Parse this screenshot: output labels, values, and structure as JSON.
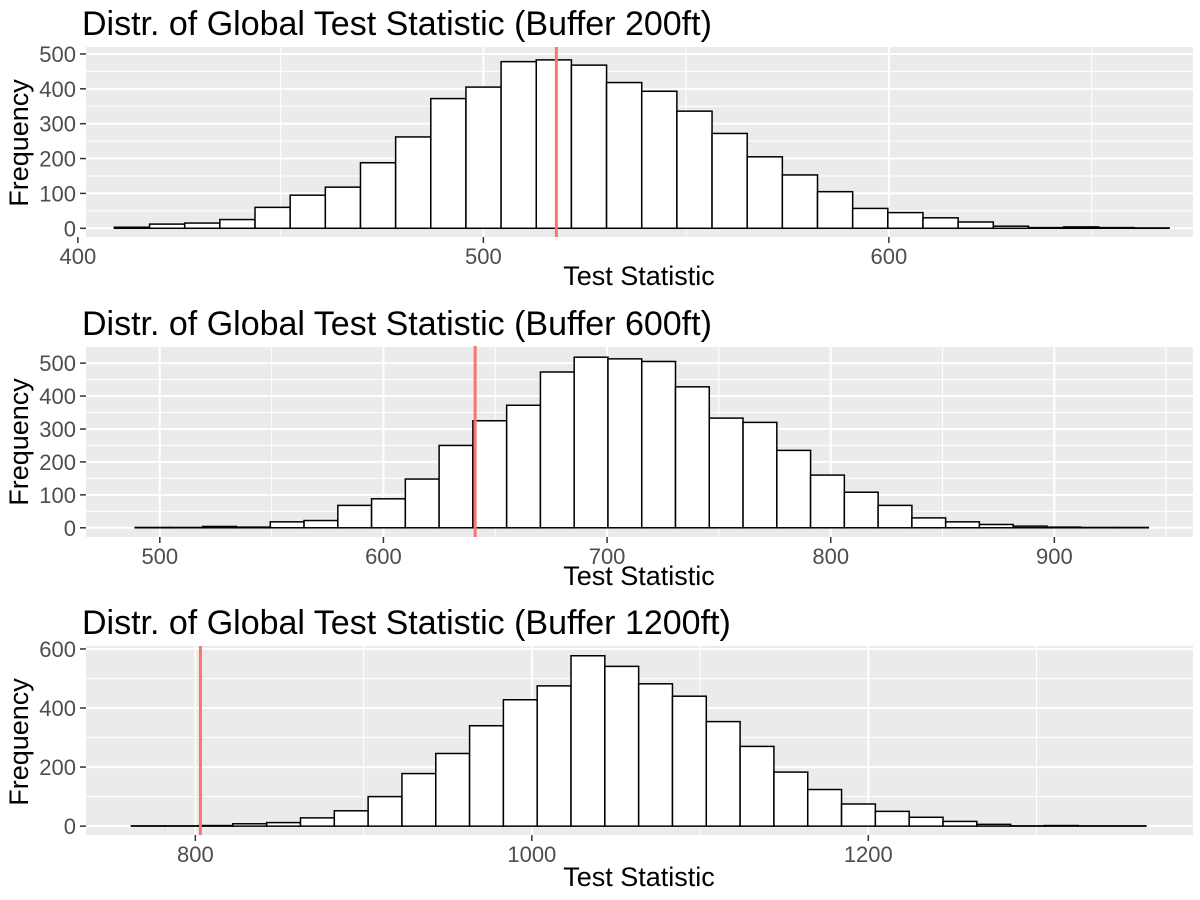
{
  "chart_data": [
    {
      "type": "histogram",
      "title": "Distr. of Global Test Statistic (Buffer 200ft)",
      "xlabel": "Test Statistic",
      "ylabel": "Frequency",
      "xlim": [
        402,
        675
      ],
      "ylim": [
        -25,
        520
      ],
      "xticks": [
        400,
        500,
        600
      ],
      "yticks": [
        0,
        100,
        200,
        300,
        400,
        500
      ],
      "bins": {
        "start": 409,
        "width": 8.67,
        "counts": [
          3,
          12,
          15,
          25,
          60,
          95,
          118,
          188,
          262,
          372,
          405,
          478,
          483,
          468,
          418,
          393,
          336,
          272,
          205,
          153,
          105,
          57,
          45,
          30,
          18,
          6,
          2,
          4,
          2,
          1
        ]
      },
      "observed_line": 518,
      "line_color": "#f8766d",
      "grid": true
    },
    {
      "type": "histogram",
      "title": "Distr. of Global Test Statistic (Buffer 600ft)",
      "xlabel": "Test Statistic",
      "ylabel": "Frequency",
      "xlim": [
        467,
        962
      ],
      "ylim": [
        -28,
        552
      ],
      "xticks": [
        500,
        600,
        700,
        800,
        900
      ],
      "yticks": [
        0,
        100,
        200,
        300,
        400,
        500
      ],
      "bins": {
        "start": 489,
        "width": 15.1,
        "counts": [
          1,
          1,
          4,
          2,
          18,
          22,
          68,
          88,
          148,
          250,
          325,
          372,
          473,
          518,
          513,
          505,
          428,
          333,
          320,
          235,
          160,
          108,
          68,
          30,
          18,
          10,
          5,
          2,
          1,
          1
        ]
      },
      "observed_line": 641,
      "line_color": "#f8766d",
      "grid": true
    },
    {
      "type": "histogram",
      "title": "Distr. of Global Test Statistic (Buffer 1200ft)",
      "xlabel": "Test Statistic",
      "ylabel": "Frequency",
      "xlim": [
        735,
        1393
      ],
      "ylim": [
        -30,
        610
      ],
      "xticks": [
        800,
        1000,
        1200
      ],
      "yticks": [
        0,
        200,
        400,
        600
      ],
      "bins": {
        "start": 762,
        "width": 20.1,
        "counts": [
          1,
          1,
          2,
          8,
          12,
          28,
          52,
          100,
          178,
          246,
          340,
          428,
          475,
          577,
          541,
          482,
          440,
          354,
          270,
          183,
          124,
          75,
          50,
          30,
          16,
          6,
          1,
          2,
          1,
          1
        ]
      },
      "observed_line": 803,
      "line_color": "#f8766d",
      "grid": true
    }
  ]
}
